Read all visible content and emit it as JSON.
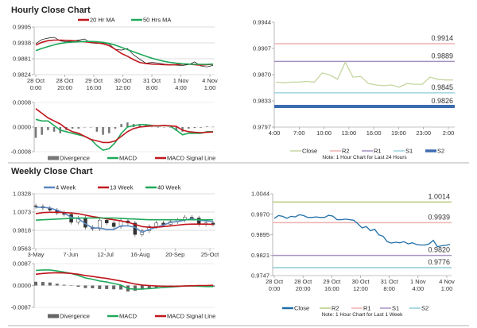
{
  "titles": {
    "hourly": "Hourly Close Chart",
    "weekly": "Weekly Close Chart"
  },
  "chart_data": [
    {
      "type": "line",
      "title": "Hourly Close Chart",
      "ylim": [
        0.9824,
        0.9995
      ],
      "y_ticks": [
        "0.9995",
        "0.9938",
        "0.9881",
        "0.9824"
      ],
      "x_ticks": [
        [
          "28 Oct",
          "0:00"
        ],
        [
          "28 Oct",
          "20:00"
        ],
        [
          "29 Oct",
          "16:00"
        ],
        [
          "30 Oct",
          "12:00"
        ],
        [
          "31 Oct",
          "8:00"
        ],
        [
          "1 Nov",
          "4:00"
        ],
        [
          "4 Nov",
          "1:00"
        ]
      ],
      "grid": true,
      "legend_position": "top",
      "series": [
        {
          "name": "",
          "color": "#111111",
          "values": [
            0.9935,
            0.995,
            0.9955,
            0.9958,
            0.9945,
            0.9942,
            0.9944,
            0.9948,
            0.9952,
            0.9938,
            0.9936,
            0.9938,
            0.9934,
            0.9915,
            0.9912,
            0.9918,
            0.9895,
            0.988,
            0.9865,
            0.9868,
            0.9866,
            0.9862,
            0.986,
            0.9858,
            0.9857,
            0.986,
            0.987,
            0.9855,
            0.9852,
            0.9857
          ]
        },
        {
          "name": "20 Hr MA",
          "color": "#c0161c",
          "values": [
            0.993,
            0.994,
            0.9946,
            0.9948,
            0.9948,
            0.9947,
            0.9946,
            0.9944,
            0.9942,
            0.994,
            0.9938,
            0.9935,
            0.9928,
            0.9915,
            0.99,
            0.989,
            0.9878,
            0.9868,
            0.9864,
            0.9862,
            0.9861,
            0.986,
            0.9859,
            0.986,
            0.9862,
            0.9862,
            0.986,
            0.9858,
            0.986,
            0.9861
          ]
        },
        {
          "name": "50 Hrs MA",
          "color": "#1fa95a",
          "values": [
            0.991,
            0.9918,
            0.9925,
            0.9931,
            0.9936,
            0.9939,
            0.9941,
            0.9942,
            0.9943,
            0.9943,
            0.9942,
            0.994,
            0.9936,
            0.993,
            0.9922,
            0.9914,
            0.9906,
            0.9898,
            0.989,
            0.9883,
            0.9877,
            0.9872,
            0.9868,
            0.9865,
            0.9863,
            0.9862,
            0.9861,
            0.9861,
            0.9861,
            0.9862
          ]
        }
      ]
    },
    {
      "type": "bar+line",
      "ylim": [
        -0.0008,
        0.0008
      ],
      "y_ticks": [
        "0.0008",
        "0.0000",
        "-0.0008"
      ],
      "legend_position": "bottom",
      "divergence": {
        "name": "Divergence",
        "color": "#777777"
      },
      "series": [
        {
          "name": "MACD",
          "color": "#1fa95a",
          "values": [
            0.00025,
            0.0002,
            0.0002,
            5e-05,
            -0.0001,
            -0.00015,
            -0.0002,
            -0.00025,
            -0.0003,
            -0.0004,
            -0.0006,
            -0.00075,
            -0.0007,
            -0.0005,
            -0.0002,
            0,
            5e-05,
            8e-05,
            8e-05,
            5e-05,
            3e-05,
            5e-05,
            3e-05,
            -0.0001,
            -0.00025,
            -0.0002,
            -0.0002,
            -0.0002,
            -0.00015,
            -0.00015
          ]
        },
        {
          "name": "MACD Signal Line",
          "color": "#c0161c",
          "values": [
            0.0006,
            0.00045,
            0.0003,
            0.0002,
            0.0001,
            -5e-05,
            -0.00015,
            -0.0002,
            -0.0003,
            -0.0004,
            -0.00045,
            -0.0005,
            -0.0005,
            -0.00045,
            -0.0003,
            -0.00015,
            -5e-05,
            0,
            2e-05,
            4e-05,
            4e-05,
            5e-05,
            4e-05,
            2e-05,
            -0.0001,
            -0.00015,
            -0.00017,
            -0.00018,
            -0.00017,
            -0.00016
          ]
        }
      ]
    },
    {
      "type": "line",
      "ylim": [
        0.9797,
        0.9944
      ],
      "y_ticks": [
        "0.9944",
        "0.9907",
        "0.9870",
        "0.9833",
        "0.9797"
      ],
      "x_ticks": [
        "4:00",
        "7:00",
        "10:00",
        "13:00",
        "16:00",
        "19:00",
        "23:00",
        "2:00"
      ],
      "legend_position": "bottom",
      "note": "Note: 1 Hour Chart for Last 24 Hours",
      "series": [
        {
          "name": "Close",
          "color": "#c5d6a0",
          "values": [
            0.986,
            0.9859,
            0.986,
            0.986,
            0.9861,
            0.986,
            0.9873,
            0.987,
            0.9864,
            0.9888,
            0.9867,
            0.9868,
            0.9858,
            0.9856,
            0.9855,
            0.9856,
            0.9853,
            0.9858,
            0.9857,
            0.9857,
            0.9867,
            0.9864,
            0.9863,
            0.9863
          ]
        }
      ],
      "levels": [
        {
          "name": "R2",
          "value": 0.9914,
          "label": "0.9914",
          "color": "#f0b0b0"
        },
        {
          "name": "R1",
          "value": 0.9889,
          "label": "0.9889",
          "color": "#a38fc0"
        },
        {
          "name": "S1",
          "value": 0.9845,
          "label": "0.9845",
          "color": "#9dd5e0"
        },
        {
          "name": "S2",
          "value": 0.9826,
          "label": "0.9826",
          "color": "#3c6cb0"
        }
      ]
    },
    {
      "type": "candlestick+line",
      "title": "Weekly Close Chart",
      "ylim": [
        0.9563,
        1.0328
      ],
      "y_ticks": [
        "1.0328",
        "1.0073",
        "0.9818",
        "0.9563"
      ],
      "x_ticks": [
        "3-May",
        "7-Jun",
        "12-Jul",
        "16-Aug",
        "20-Sep",
        "25-Oct"
      ],
      "grid": true,
      "legend_position": "top",
      "close": [
        1.015,
        1.013,
        1.01,
        1.006,
        1.004,
        0.993,
        0.999,
        0.986,
        0.984,
        0.996,
        0.992,
        0.987,
        0.995,
        0.992,
        0.976,
        0.981,
        0.987,
        0.992,
        0.99,
        0.994,
        0.996,
        1.0,
        0.999,
        0.99,
        0.992,
        0.99
      ],
      "series": [
        {
          "name": "4 Week",
          "color": "#5b88c0",
          "values": [
            1.014,
            1.014,
            1.013,
            1.01,
            1.006,
            1.0,
            0.998,
            0.991,
            0.985,
            0.985,
            0.983,
            0.983,
            0.988,
            0.988,
            0.986,
            0.979,
            0.983,
            0.986,
            0.989,
            0.993,
            0.994,
            0.996,
            0.998,
            0.996,
            0.995,
            0.994
          ]
        },
        {
          "name": "13 Week",
          "color": "#c0161c",
          "values": [
            1.005,
            1.0065,
            1.007,
            1.007,
            1.0065,
            1.006,
            1.005,
            1.003,
            1.001,
            0.9995,
            0.998,
            0.9965,
            0.995,
            0.993,
            0.99,
            0.987,
            0.986,
            0.986,
            0.987,
            0.988,
            0.989,
            0.99,
            0.9905,
            0.9905,
            0.9905,
            0.99
          ]
        },
        {
          "name": "40 Week",
          "color": "#1fa95a",
          "values": [
            0.996,
            0.9965,
            0.997,
            0.9975,
            0.998,
            0.9985,
            0.999,
            0.999,
            0.999,
            0.999,
            0.999,
            0.999,
            0.9985,
            0.998,
            0.9975,
            0.997,
            0.9965,
            0.9965,
            0.9965,
            0.9965,
            0.9965,
            0.9965,
            0.9965,
            0.9965,
            0.9965,
            0.9965
          ]
        }
      ]
    },
    {
      "type": "bar+line",
      "ylim": [
        -0.0087,
        0.0087
      ],
      "y_ticks": [
        "0.0087",
        "0.0000",
        "-0.0087"
      ],
      "legend_position": "bottom",
      "divergence": {
        "name": "Divergence",
        "color": "#666666"
      },
      "series": [
        {
          "name": "MACD",
          "color": "#1fa95a",
          "values": [
            0.006,
            0.0062,
            0.0062,
            0.0058,
            0.0053,
            0.0048,
            0.004,
            0.003,
            0.0025,
            0.0018,
            0.0014,
            0.0008,
            0.0002,
            -0.0012,
            -0.0015,
            -0.0014,
            -0.0012,
            -0.001,
            -0.0008,
            -0.0006,
            -0.0004,
            -0.0002,
            -0.0002,
            -0.0003,
            -0.0004,
            -0.0004
          ]
        },
        {
          "name": "MACD Signal Line",
          "color": "#c0161c",
          "values": [
            0.0045,
            0.0048,
            0.005,
            0.0051,
            0.005,
            0.0048,
            0.0045,
            0.004,
            0.0036,
            0.0032,
            0.0028,
            0.0023,
            0.0018,
            0.0012,
            0.0006,
            0.0002,
            0.0,
            -0.0002,
            -0.0003,
            -0.0003,
            -0.0003,
            -0.0002,
            -0.0001,
            0,
            0,
            0.0001
          ]
        }
      ]
    },
    {
      "type": "line",
      "ylim": [
        0.9747,
        1.0044
      ],
      "y_ticks": [
        "1.0044",
        "0.9970",
        "0.9895",
        "0.9821",
        "0.9747"
      ],
      "x_ticks": [
        [
          "28 Oct",
          "0:00"
        ],
        [
          "28 Oct",
          "20:00"
        ],
        [
          "29 Oct",
          "16:00"
        ],
        [
          "30 Oct",
          "12:00"
        ],
        [
          "31 Oct",
          "8:00"
        ],
        [
          "1 Nov",
          "4:00"
        ],
        [
          "4 Nov",
          "1:00"
        ]
      ],
      "legend_position": "bottom",
      "note": "Note: 1 Hour Chart for Last 1 Week",
      "series": [
        {
          "name": "Close",
          "color": "#1f6fa8",
          "values": [
            0.9955,
            0.9965,
            0.9962,
            0.9955,
            0.9962,
            0.996,
            0.9968,
            0.9965,
            0.9958,
            0.9958,
            0.996,
            0.9958,
            0.9958,
            0.9966,
            0.9963,
            0.995,
            0.995,
            0.9952,
            0.995,
            0.9948,
            0.9935,
            0.992,
            0.9925,
            0.991,
            0.9915,
            0.9895,
            0.989,
            0.987,
            0.9865,
            0.9868,
            0.9866,
            0.987,
            0.9862,
            0.9866,
            0.986,
            0.9858,
            0.9858,
            0.9862,
            0.9875,
            0.9852,
            0.9855,
            0.9857,
            0.986
          ]
        }
      ],
      "levels": [
        {
          "name": "R2",
          "value": 1.0014,
          "label": "1.0014",
          "color": "#b8cc7a"
        },
        {
          "name": "R1",
          "value": 0.9939,
          "label": "0.9939",
          "color": "#f0b0b0"
        },
        {
          "name": "S1",
          "value": 0.982,
          "label": "0.9820",
          "color": "#a895c4"
        },
        {
          "name": "S2",
          "value": 0.9776,
          "label": "0.9776",
          "color": "#8ccbd8"
        }
      ]
    }
  ]
}
